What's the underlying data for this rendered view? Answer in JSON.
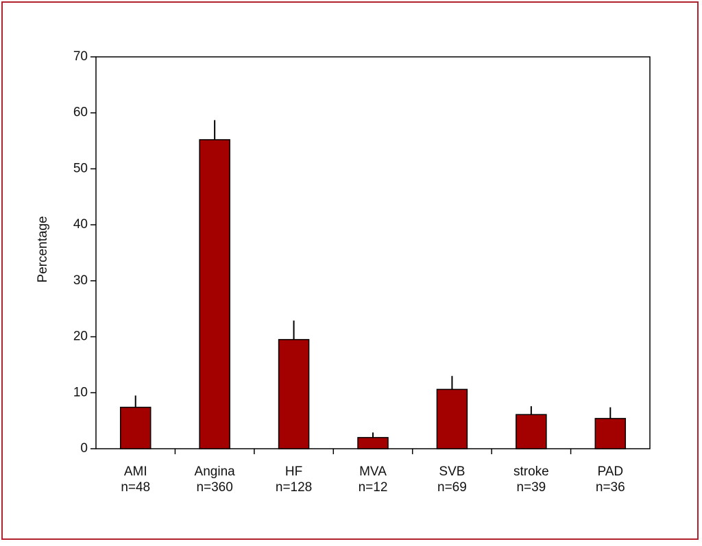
{
  "chart_data": {
    "type": "bar",
    "y_label": "Percentage",
    "categories": [
      "AMI",
      "Angina",
      "HF",
      "MVA",
      "SVB",
      "stroke",
      "PAD"
    ],
    "sample_sizes": [
      "n=48",
      "n=360",
      "n=128",
      "n=12",
      "n=69",
      "n=39",
      "n=36"
    ],
    "values": [
      7.4,
      55.2,
      19.5,
      2.0,
      10.6,
      6.1,
      5.4
    ],
    "errors": [
      2.1,
      3.5,
      3.4,
      0.9,
      2.4,
      1.5,
      2.0
    ],
    "color": "#a30000",
    "ylim": [
      0,
      70
    ],
    "yticks": [
      0,
      10,
      20,
      30,
      40,
      50,
      60,
      70
    ],
    "grid": false
  }
}
